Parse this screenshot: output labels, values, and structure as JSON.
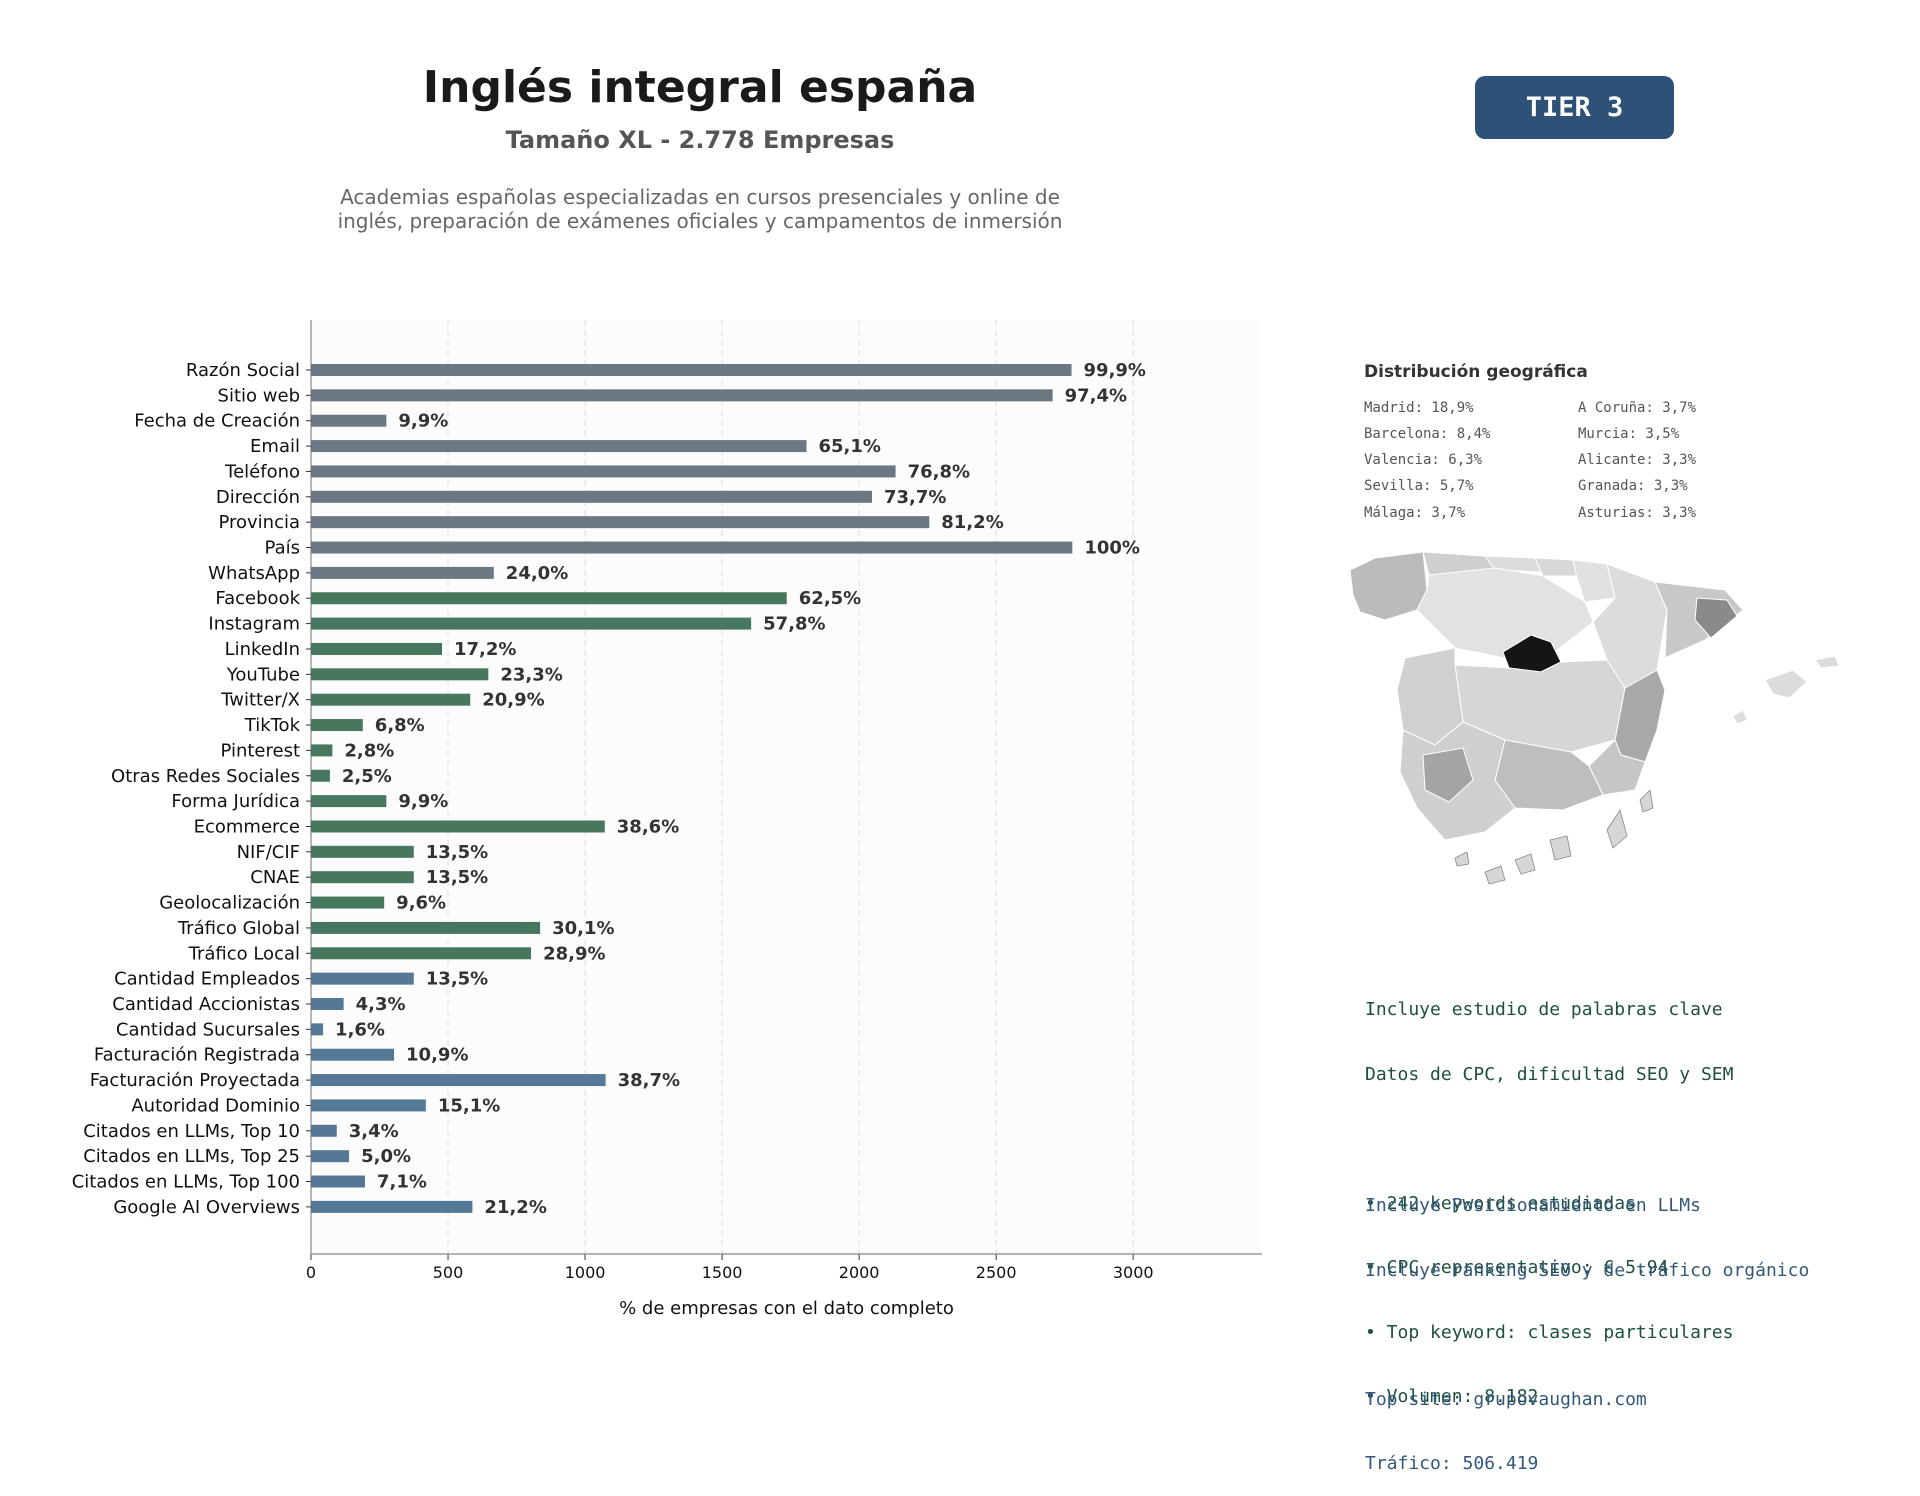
{
  "header": {
    "title": "Inglés integral españa",
    "subtitle": "Tamaño XL - 2.778 Empresas",
    "description_lines": [
      "Academias españolas especializadas en cursos presenciales y online de",
      "inglés, preparación de exámenes oficiales y campamentos de inmersión"
    ],
    "tier_badge": "TIER 3"
  },
  "colors": {
    "gray": "#6c7784",
    "green": "#47785f",
    "blue": "#557896",
    "badge": "#2e5277"
  },
  "chart_data": {
    "type": "bar",
    "orientation": "horizontal",
    "title": "",
    "xlabel": "% de empresas con el dato completo",
    "ylabel": "",
    "xlim": [
      0,
      3470
    ],
    "xticks": [
      0,
      500,
      1000,
      1500,
      2000,
      2500,
      3000
    ],
    "grid": "vertical dashed",
    "categories": [
      "Razón Social",
      "Sitio web",
      "Fecha de Creación",
      "Email",
      "Teléfono",
      "Dirección",
      "Provincia",
      "País",
      "WhatsApp",
      "Facebook",
      "Instagram",
      "LinkedIn",
      "YouTube",
      "Twitter/X",
      "TikTok",
      "Pinterest",
      "Otras Redes Sociales",
      "Forma Jurídica",
      "Ecommerce",
      "NIF/CIF",
      "CNAE",
      "Geolocalización",
      "Tráfico Global",
      "Tráfico Local",
      "Cantidad Empleados",
      "Cantidad Accionistas",
      "Cantidad Sucursales",
      "Facturación Registrada",
      "Facturación Proyectada",
      "Autoridad Dominio",
      "Citados en LLMs, Top 10",
      "Citados en LLMs, Top 25",
      "Citados en LLMs, Top 100",
      "Google AI Overviews"
    ],
    "values": [
      2775,
      2706,
      275,
      1808,
      2133,
      2047,
      2256,
      2778,
      667,
      1736,
      1606,
      478,
      647,
      581,
      189,
      78,
      69,
      275,
      1072,
      375,
      375,
      267,
      836,
      803,
      375,
      119,
      44,
      303,
      1075,
      419,
      94,
      139,
      197,
      589
    ],
    "labels": [
      "99,9%",
      "97,4%",
      "9,9%",
      "65,1%",
      "76,8%",
      "73,7%",
      "81,2%",
      "100%",
      "24,0%",
      "62,5%",
      "57,8%",
      "17,2%",
      "23,3%",
      "20,9%",
      "6,8%",
      "2,8%",
      "2,5%",
      "9,9%",
      "38,6%",
      "13,5%",
      "13,5%",
      "9,6%",
      "30,1%",
      "28,9%",
      "13,5%",
      "4,3%",
      "1,6%",
      "10,9%",
      "38,7%",
      "15,1%",
      "3,4%",
      "5,0%",
      "7,1%",
      "21,2%"
    ],
    "bar_groups": [
      "gray",
      "gray",
      "gray",
      "gray",
      "gray",
      "gray",
      "gray",
      "gray",
      "gray",
      "green",
      "green",
      "green",
      "green",
      "green",
      "green",
      "green",
      "green",
      "green",
      "green",
      "green",
      "green",
      "green",
      "green",
      "green",
      "blue",
      "blue",
      "blue",
      "blue",
      "blue",
      "blue",
      "blue",
      "blue",
      "blue",
      "blue"
    ]
  },
  "geo": {
    "title": "Distribución geográfica",
    "items_left": [
      "Madrid: 18,9%",
      "Barcelona: 8,4%",
      "Valencia: 6,3%",
      "Sevilla: 5,7%",
      "Málaga: 3,7%"
    ],
    "items_right": [
      "A Coruña: 3,7%",
      "Murcia: 3,5%",
      "Alicante: 3,3%",
      "Granada: 3,3%",
      "Asturias: 3,3%"
    ]
  },
  "keywords_block": {
    "lines": [
      "Incluye estudio de palabras clave",
      "Datos de CPC, dificultad SEO y SEM",
      "",
      "• 242 keywords estudiadas",
      "• CPC representativo: € 5.94",
      "• Top keyword: clases particulares",
      "• Volumen: 8.182"
    ]
  },
  "llm_block": {
    "lines": [
      "Incluye Posicionamiento en LLMs",
      "Incluye ranking SEO y de tráfico orgánico",
      "",
      "Top site: grupovaughan.com",
      "Tráfico: 506.419"
    ]
  }
}
